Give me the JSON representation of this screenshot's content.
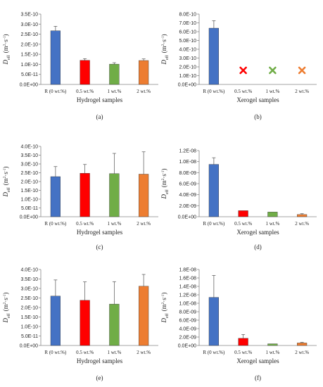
{
  "chart_data": [
    {
      "type": "bar",
      "panel": "(a)",
      "categories": [
        "R (0 wt.%)",
        "0.5 wt.%",
        "1 wt.%",
        "2 wt.%"
      ],
      "values": [
        2.67e-10,
        1.2e-10,
        1.01e-10,
        1.19e-10
      ],
      "errors": [
        2.2e-11,
        8e-12,
        7e-12,
        8e-12
      ],
      "colors": [
        "#4472C4",
        "#FF0000",
        "#70AD47",
        "#ED7D31"
      ],
      "ylim": [
        0,
        3.5e-10
      ],
      "ytick_step": 5e-11,
      "yticks": [
        "0.0E+00",
        "5.0E-11",
        "1.0E-10",
        "1.5E-10",
        "2.0E-10",
        "2.5E-10",
        "3.0E-10",
        "3.5E-10"
      ],
      "ylabel_sym": "D",
      "ylabel_sub": "eff",
      "ylabel_unit": "(m",
      "ylabel_sup1": "2",
      "ylabel_mid": "·s",
      "ylabel_sup2": "-1",
      "ylabel_end": ")",
      "xlabel": "Hydrogel samples",
      "markers": []
    },
    {
      "type": "bar",
      "panel": "(b)",
      "categories": [
        "R (0 wt.%)",
        "0.5 wt.%",
        "1 wt.%",
        "2 wt.%"
      ],
      "values": [
        6.4e-10,
        null,
        null,
        null
      ],
      "errors": [
        8.5e-11,
        null,
        null,
        null
      ],
      "colors": [
        "#4472C4",
        "#FF0000",
        "#70AD47",
        "#ED7D31"
      ],
      "ylim": [
        0,
        8e-10
      ],
      "ytick_step": 1e-10,
      "yticks": [
        "0.0E+00",
        "1.0E-10",
        "2.0E-10",
        "3.0E-10",
        "4.0E-10",
        "5.0E-10",
        "6.0E-10",
        "7.0E-10",
        "8.0E-10"
      ],
      "ylabel_sym": "D",
      "ylabel_sub": "eff",
      "ylabel_unit": "(m",
      "ylabel_sup1": "2",
      "ylabel_mid": "·s",
      "ylabel_sup2": "-1",
      "ylabel_end": ")",
      "xlabel": "Xerogel samples",
      "markers": [
        {
          "category": "0.5 wt.%",
          "value": 1.6e-10,
          "symbol": "✖",
          "color": "#FF0000"
        },
        {
          "category": "1 wt.%",
          "value": 1.6e-10,
          "symbol": "✖",
          "color": "#70AD47"
        },
        {
          "category": "2 wt.%",
          "value": 1.6e-10,
          "symbol": "✖",
          "color": "#ED7D31"
        }
      ]
    },
    {
      "type": "bar",
      "panel": "(c)",
      "categories": [
        "R (0 wt.%)",
        "0.5 wt.%",
        "1 wt.%",
        "2 wt.%"
      ],
      "values": [
        2.28e-10,
        2.47e-10,
        2.45e-10,
        2.42e-10
      ],
      "errors": [
        5.7e-11,
        5e-11,
        1.15e-10,
        1.27e-10
      ],
      "colors": [
        "#4472C4",
        "#FF0000",
        "#70AD47",
        "#ED7D31"
      ],
      "ylim": [
        0,
        4e-10
      ],
      "ytick_step": 5e-11,
      "yticks": [
        "0.0E+00",
        "5.0E-11",
        "1.0E-10",
        "1.5E-10",
        "2.0E-10",
        "2.5E-10",
        "3.0E-10",
        "3.5E-10",
        "4.0E-10"
      ],
      "ylabel_sym": "D",
      "ylabel_sub": "eff",
      "ylabel_unit": "(m",
      "ylabel_sup1": "2",
      "ylabel_mid": "·s",
      "ylabel_sup2": "-1",
      "ylabel_end": ")",
      "xlabel": "Hydrogel samples",
      "markers": []
    },
    {
      "type": "bar",
      "panel": "(d)",
      "categories": [
        "R (0 wt.%)",
        "0.5 wt.%",
        "1 wt.%",
        "2 wt.%"
      ],
      "values": [
        9.5e-09,
        1.1e-09,
        8.5e-10,
        4e-10
      ],
      "errors": [
        1.2e-09,
        null,
        null,
        1.5e-10
      ],
      "colors": [
        "#4472C4",
        "#FF0000",
        "#70AD47",
        "#ED7D31"
      ],
      "ylim": [
        0,
        1.2e-08
      ],
      "ytick_step": 2e-09,
      "yticks": [
        "0.0E+00",
        "2.0E-09",
        "4.0E-09",
        "6.0E-09",
        "8.0E-09",
        "1.0E-08",
        "1.2E-08"
      ],
      "ylabel_sym": "D",
      "ylabel_sub": "eff",
      "ylabel_unit": "(m",
      "ylabel_sup1": "2",
      "ylabel_mid": "·s",
      "ylabel_sup2": "-1",
      "ylabel_end": ")",
      "xlabel": "Xerogel samples",
      "markers": []
    },
    {
      "type": "bar",
      "panel": "(e)",
      "categories": [
        "R (0 wt.%)",
        "0.5 wt.%",
        "1 wt.%",
        "2 wt.%"
      ],
      "values": [
        2.6e-10,
        2.38e-10,
        2.18e-10,
        3.12e-10
      ],
      "errors": [
        8.5e-11,
        9.7e-11,
        1.18e-10,
        6.2e-11
      ],
      "colors": [
        "#4472C4",
        "#FF0000",
        "#70AD47",
        "#ED7D31"
      ],
      "ylim": [
        0,
        4e-10
      ],
      "ytick_step": 5e-11,
      "yticks": [
        "0.0E+00",
        "5.0E-11",
        "1.0E-10",
        "1.5E-10",
        "2.0E-10",
        "2.5E-10",
        "3.0E-10",
        "3.5E-10",
        "4.0E-10"
      ],
      "ylabel_sym": "D",
      "ylabel_sub": "eff",
      "ylabel_unit": "(m",
      "ylabel_sup1": "2",
      "ylabel_mid": "·s",
      "ylabel_sup2": "-1",
      "ylabel_end": ")",
      "xlabel": "Hydrogel samples",
      "markers": []
    },
    {
      "type": "bar",
      "panel": "(f)",
      "categories": [
        "R (0 wt.%)",
        "0.5 wt.%",
        "1 wt.%",
        "2 wt.%"
      ],
      "values": [
        1.14e-08,
        1.7e-09,
        4e-10,
        6e-10
      ],
      "errors": [
        5.2e-09,
        9e-10,
        null,
        1.5e-10
      ],
      "colors": [
        "#4472C4",
        "#FF0000",
        "#70AD47",
        "#ED7D31"
      ],
      "ylim": [
        0,
        1.8e-08
      ],
      "ytick_step": 2e-09,
      "yticks": [
        "0.0E+00",
        "2.0E-09",
        "4.0E-09",
        "6.0E-09",
        "8.0E-09",
        "1.0E-08",
        "1.2E-08",
        "1.4E-08",
        "1.6E-08",
        "1.8E-08"
      ],
      "ylabel_sym": "D",
      "ylabel_sub": "eff",
      "ylabel_unit": "(m",
      "ylabel_sup1": "2",
      "ylabel_mid": "·s",
      "ylabel_sup2": "-1",
      "ylabel_end": ")",
      "xlabel": "Xerogel samples",
      "markers": []
    }
  ]
}
